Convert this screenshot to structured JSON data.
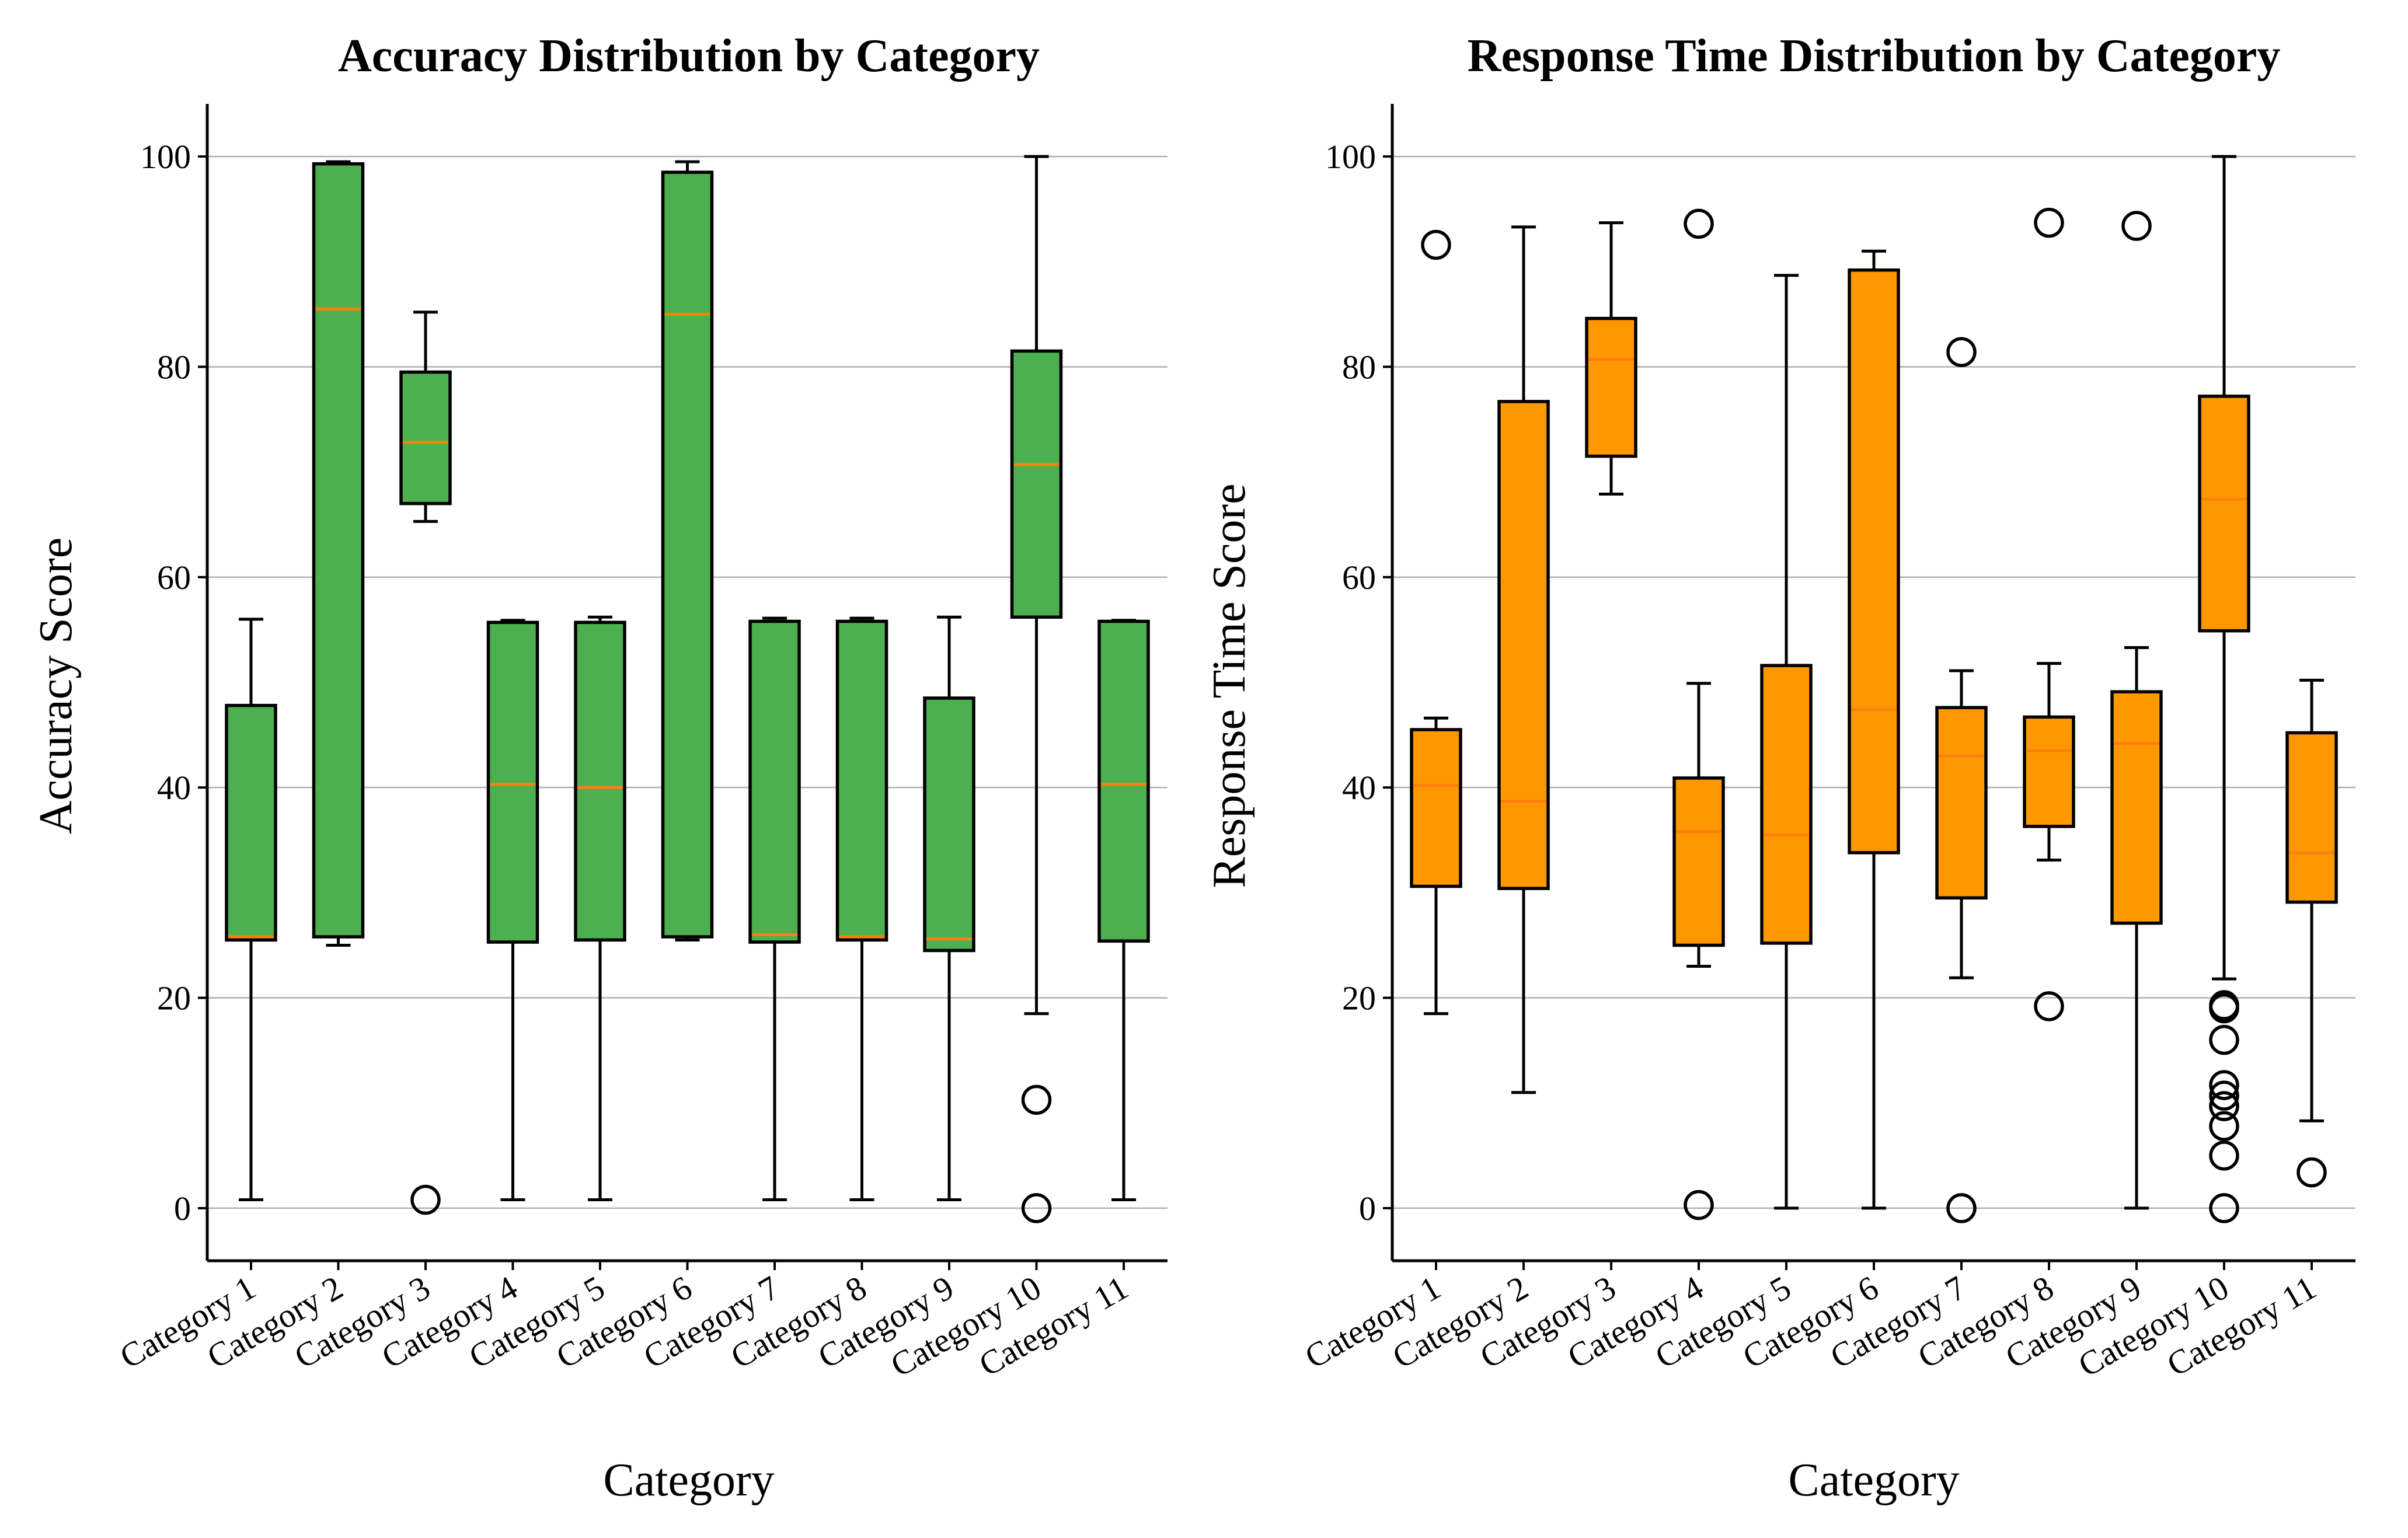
{
  "chart_data": [
    {
      "type": "box",
      "title": "Accuracy Distribution by Category",
      "xlabel": "Category",
      "ylabel": "Accuracy Score",
      "ylim": [
        -5,
        105
      ],
      "yticks": [
        0,
        20,
        40,
        60,
        80,
        100
      ],
      "grid": "y",
      "box_color": "#4caf50",
      "median_color": "#ff7f0e",
      "categories": [
        "Category 1",
        "Category 2",
        "Category 3",
        "Category 4",
        "Category 5",
        "Category 6",
        "Category 7",
        "Category 8",
        "Category 9",
        "Category 10",
        "Category 11"
      ],
      "boxes": [
        {
          "whislo": 0.8,
          "q1": 25.5,
          "med": 25.8,
          "q3": 47.8,
          "whishi": 56.0,
          "fliers": []
        },
        {
          "whislo": 25.0,
          "q1": 25.8,
          "med": 85.5,
          "q3": 99.3,
          "whishi": 99.5,
          "fliers": []
        },
        {
          "whislo": 65.3,
          "q1": 67.0,
          "med": 72.8,
          "q3": 79.5,
          "whishi": 85.2,
          "fliers": [
            0.8
          ]
        },
        {
          "whislo": 0.8,
          "q1": 25.3,
          "med": 40.3,
          "q3": 55.7,
          "whishi": 55.9,
          "fliers": []
        },
        {
          "whislo": 0.8,
          "q1": 25.5,
          "med": 40.0,
          "q3": 55.7,
          "whishi": 56.2,
          "fliers": []
        },
        {
          "whislo": 25.5,
          "q1": 25.8,
          "med": 85.0,
          "q3": 98.5,
          "whishi": 99.5,
          "fliers": []
        },
        {
          "whislo": 0.8,
          "q1": 25.3,
          "med": 26.0,
          "q3": 55.8,
          "whishi": 56.1,
          "fliers": []
        },
        {
          "whislo": 0.8,
          "q1": 25.5,
          "med": 25.8,
          "q3": 55.8,
          "whishi": 56.1,
          "fliers": []
        },
        {
          "whislo": 0.8,
          "q1": 24.5,
          "med": 25.6,
          "q3": 48.5,
          "whishi": 56.2,
          "fliers": []
        },
        {
          "whislo": 18.5,
          "q1": 56.2,
          "med": 70.7,
          "q3": 81.5,
          "whishi": 100.0,
          "fliers": [
            10.3,
            0.0
          ]
        },
        {
          "whislo": 0.8,
          "q1": 25.4,
          "med": 40.3,
          "q3": 55.8,
          "whishi": 55.9,
          "fliers": []
        }
      ]
    },
    {
      "type": "box",
      "title": "Response Time Distribution by Category",
      "xlabel": "Category",
      "ylabel": "Response Time Score",
      "ylim": [
        -5,
        105
      ],
      "yticks": [
        0,
        20,
        40,
        60,
        80,
        100
      ],
      "grid": "y",
      "box_color": "#ff9800",
      "median_color": "#ff7f0e",
      "categories": [
        "Category 1",
        "Category 2",
        "Category 3",
        "Category 4",
        "Category 5",
        "Category 6",
        "Category 7",
        "Category 8",
        "Category 9",
        "Category 10",
        "Category 11"
      ],
      "boxes": [
        {
          "whislo": 18.5,
          "q1": 30.6,
          "med": 40.2,
          "q3": 45.5,
          "whishi": 46.6,
          "fliers": [
            91.6
          ]
        },
        {
          "whislo": 11.0,
          "q1": 30.4,
          "med": 38.7,
          "q3": 76.7,
          "whishi": 93.3,
          "fliers": []
        },
        {
          "whislo": 67.9,
          "q1": 71.5,
          "med": 80.7,
          "q3": 84.6,
          "whishi": 93.7,
          "fliers": []
        },
        {
          "whislo": 23.0,
          "q1": 25.0,
          "med": 35.8,
          "q3": 40.9,
          "whishi": 49.9,
          "fliers": [
            93.6,
            0.3
          ]
        },
        {
          "whislo": 0.0,
          "q1": 25.2,
          "med": 35.5,
          "q3": 51.6,
          "whishi": 88.7,
          "fliers": []
        },
        {
          "whislo": 0.0,
          "q1": 33.8,
          "med": 47.4,
          "q3": 89.2,
          "whishi": 91.0,
          "fliers": []
        },
        {
          "whislo": 21.9,
          "q1": 29.5,
          "med": 43.0,
          "q3": 47.6,
          "whishi": 51.1,
          "fliers": [
            81.4,
            0.0
          ]
        },
        {
          "whislo": 33.1,
          "q1": 36.3,
          "med": 43.5,
          "q3": 46.7,
          "whishi": 51.8,
          "fliers": [
            93.7,
            19.2
          ]
        },
        {
          "whislo": 0.0,
          "q1": 27.1,
          "med": 44.2,
          "q3": 49.1,
          "whishi": 53.3,
          "fliers": [
            93.4
          ]
        },
        {
          "whislo": 21.8,
          "q1": 54.9,
          "med": 67.4,
          "q3": 77.2,
          "whishi": 100.0,
          "fliers": [
            19.3,
            19.0,
            16.0,
            11.7,
            10.7,
            9.7,
            7.8,
            5.0,
            0.0
          ]
        },
        {
          "whislo": 8.3,
          "q1": 29.1,
          "med": 33.8,
          "q3": 45.2,
          "whishi": 50.2,
          "fliers": [
            3.4
          ]
        }
      ]
    }
  ]
}
